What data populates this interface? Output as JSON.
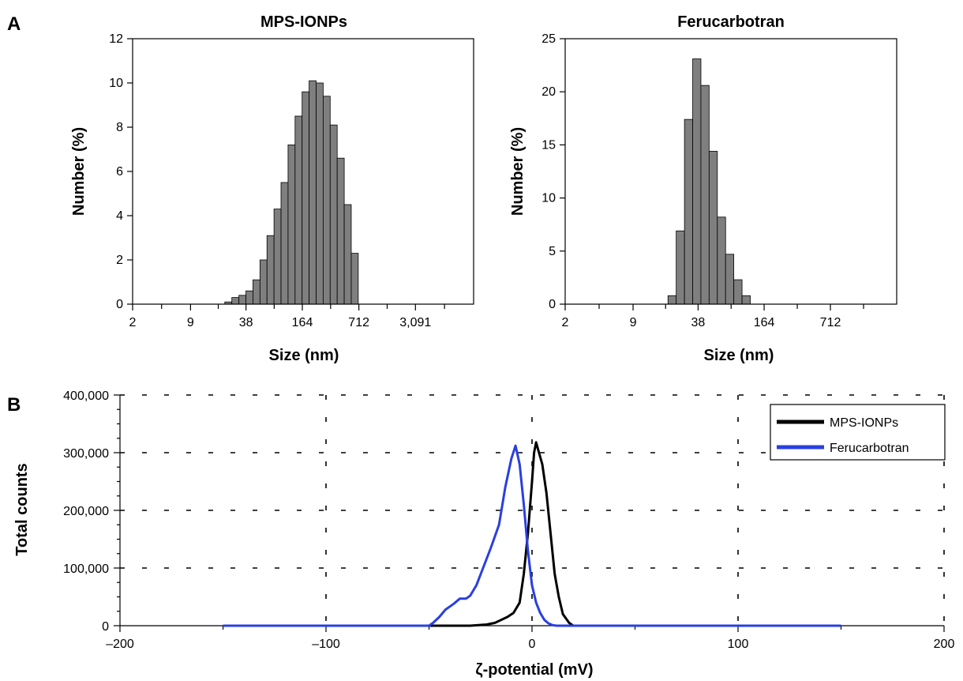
{
  "panel_labels": {
    "a": "A",
    "b": "B"
  },
  "chart_data": [
    {
      "type": "bar",
      "panel": "A",
      "title": "MPS-IONPs",
      "xlabel": "Size (nm)",
      "ylabel": "Number (%)",
      "x_scale": "log",
      "x_tick_labels": [
        "2",
        "9",
        "38",
        "164",
        "712",
        "3,091"
      ],
      "x_tick_values": [
        2,
        9,
        38,
        164,
        712,
        3091
      ],
      "xlim": [
        2,
        14000
      ],
      "ylim": [
        0,
        12
      ],
      "y_ticks": [
        0,
        2,
        4,
        6,
        8,
        10,
        12
      ],
      "bin_ratio": 1.2,
      "bin_starts": [
        21.9,
        26.3,
        31.6,
        37.9,
        45.5,
        54.6,
        65.5,
        78.6,
        94.3,
        113.2,
        135.8,
        163,
        195.6,
        234.7,
        281.6,
        337.9,
        405.5,
        486.6,
        583.9
      ],
      "values": [
        0.1,
        0.3,
        0.4,
        0.6,
        1.1,
        2.0,
        3.1,
        4.3,
        5.5,
        7.2,
        8.5,
        9.6,
        10.1,
        10.0,
        9.4,
        8.1,
        6.6,
        4.5,
        2.3
      ]
    },
    {
      "type": "bar",
      "panel": "A",
      "title": "Ferucarbotran",
      "xlabel": "Size (nm)",
      "ylabel": "Number (%)",
      "x_scale": "log",
      "x_tick_labels": [
        "2",
        "9",
        "38",
        "164",
        "712"
      ],
      "x_tick_values": [
        2,
        9,
        38,
        164,
        712
      ],
      "xlim": [
        2,
        3091
      ],
      "ylim": [
        0,
        25
      ],
      "y_ticks": [
        0,
        5,
        10,
        15,
        20,
        25
      ],
      "bin_ratio": 1.2,
      "bin_starts": [
        19.5,
        23.4,
        28.1,
        33.7,
        40.4,
        48.5,
        58.2,
        69.8,
        83.8,
        100.6
      ],
      "values": [
        0.8,
        6.9,
        17.4,
        23.1,
        20.6,
        14.4,
        8.2,
        4.7,
        2.3,
        0.8
      ]
    },
    {
      "type": "line",
      "panel": "B",
      "title": "",
      "xlabel": "ζ-potential (mV)",
      "ylabel": "Total counts",
      "xlim": [
        -200,
        200
      ],
      "ylim": [
        0,
        400000
      ],
      "x_ticks": [
        -200,
        -100,
        0,
        100,
        200
      ],
      "x_tick_labels": [
        "–200",
        "–100",
        "0",
        "100",
        "200"
      ],
      "y_ticks": [
        0,
        100000,
        200000,
        300000,
        400000
      ],
      "y_tick_labels": [
        "0",
        "100,000",
        "200,000",
        "300,000",
        "400,000"
      ],
      "grid": true,
      "legend_position": "top-right",
      "series": [
        {
          "name": "MPS-IONPs",
          "color": "#000000",
          "x": [
            -150,
            -30,
            -22,
            -18,
            -15,
            -12,
            -9,
            -6,
            -4,
            -2,
            0,
            1,
            2,
            3,
            5,
            7,
            9,
            11,
            13,
            15,
            18,
            20,
            150
          ],
          "y": [
            0,
            0,
            2000,
            5000,
            10000,
            15000,
            22000,
            40000,
            90000,
            160000,
            250000,
            300000,
            318000,
            305000,
            280000,
            230000,
            160000,
            90000,
            50000,
            20000,
            5000,
            0,
            0
          ]
        },
        {
          "name": "Ferucarbotran",
          "color": "#2a3fe0",
          "x": [
            -150,
            -50,
            -48,
            -45,
            -42,
            -38,
            -35,
            -32,
            -30,
            -27,
            -24,
            -20,
            -16,
            -13,
            -10,
            -8,
            -6,
            -4,
            -2,
            0,
            2,
            4,
            6,
            8,
            10,
            12,
            150
          ],
          "y": [
            0,
            0,
            5000,
            15000,
            28000,
            38000,
            47000,
            47000,
            52000,
            70000,
            98000,
            135000,
            175000,
            240000,
            290000,
            312000,
            280000,
            210000,
            130000,
            70000,
            40000,
            22000,
            10000,
            4000,
            1000,
            0,
            0
          ]
        }
      ]
    }
  ]
}
